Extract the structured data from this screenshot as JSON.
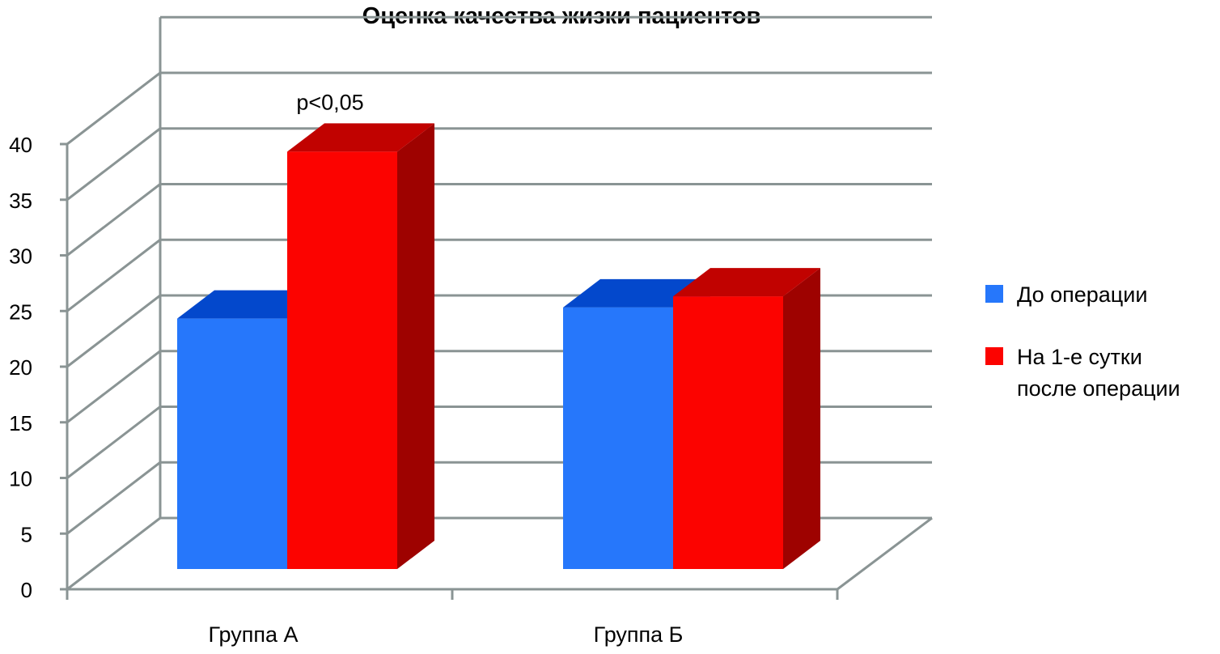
{
  "chart_data": {
    "type": "bar",
    "title": "Оценка качества жизки пациентов",
    "categories": [
      "Группа А",
      "Группа Б"
    ],
    "series": [
      {
        "name": "До операции",
        "values": [
          22.5,
          23.5
        ],
        "color": "#2677FB",
        "top_color": "#0348CC"
      },
      {
        "name": "На 1-е сутки после операции",
        "values": [
          37.5,
          24.5
        ],
        "color": "#FC0300",
        "top_color": "#C10200",
        "side_color": "#9E0200"
      }
    ],
    "yticks": [
      0,
      5,
      10,
      15,
      20,
      25,
      30,
      35,
      40
    ],
    "ylim": [
      0,
      40
    ],
    "grid": true,
    "legend_position": "right",
    "annotation": {
      "text": "p<0,05",
      "category": "Группа А"
    }
  }
}
